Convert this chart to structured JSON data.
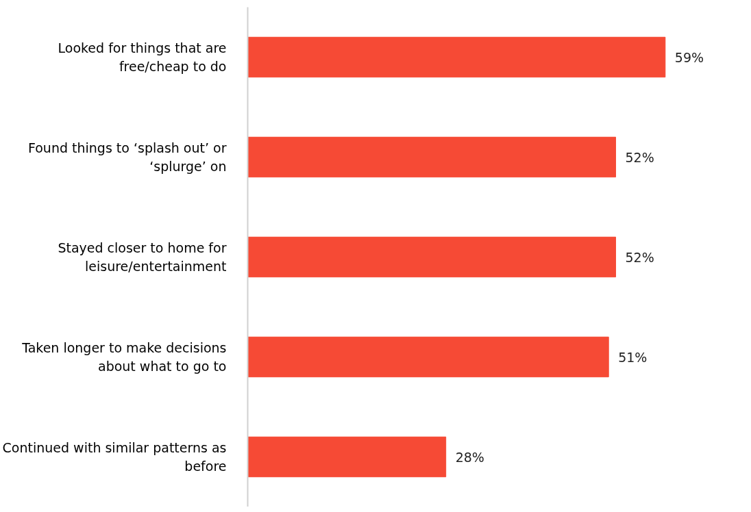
{
  "chart_data": {
    "type": "bar",
    "orientation": "horizontal",
    "categories": [
      "Looked for things that are free/cheap to do",
      "Found things to ‘splash out’ or ‘splurge’ on",
      "Stayed closer to home for leisure/entertainment",
      "Taken longer to make decisions about what to go to",
      "Continued with similar patterns as before"
    ],
    "values": [
      59,
      52,
      52,
      51,
      28
    ],
    "value_labels": [
      "59%",
      "52%",
      "52%",
      "51%",
      "28%"
    ],
    "color": "#f64a35"
  }
}
